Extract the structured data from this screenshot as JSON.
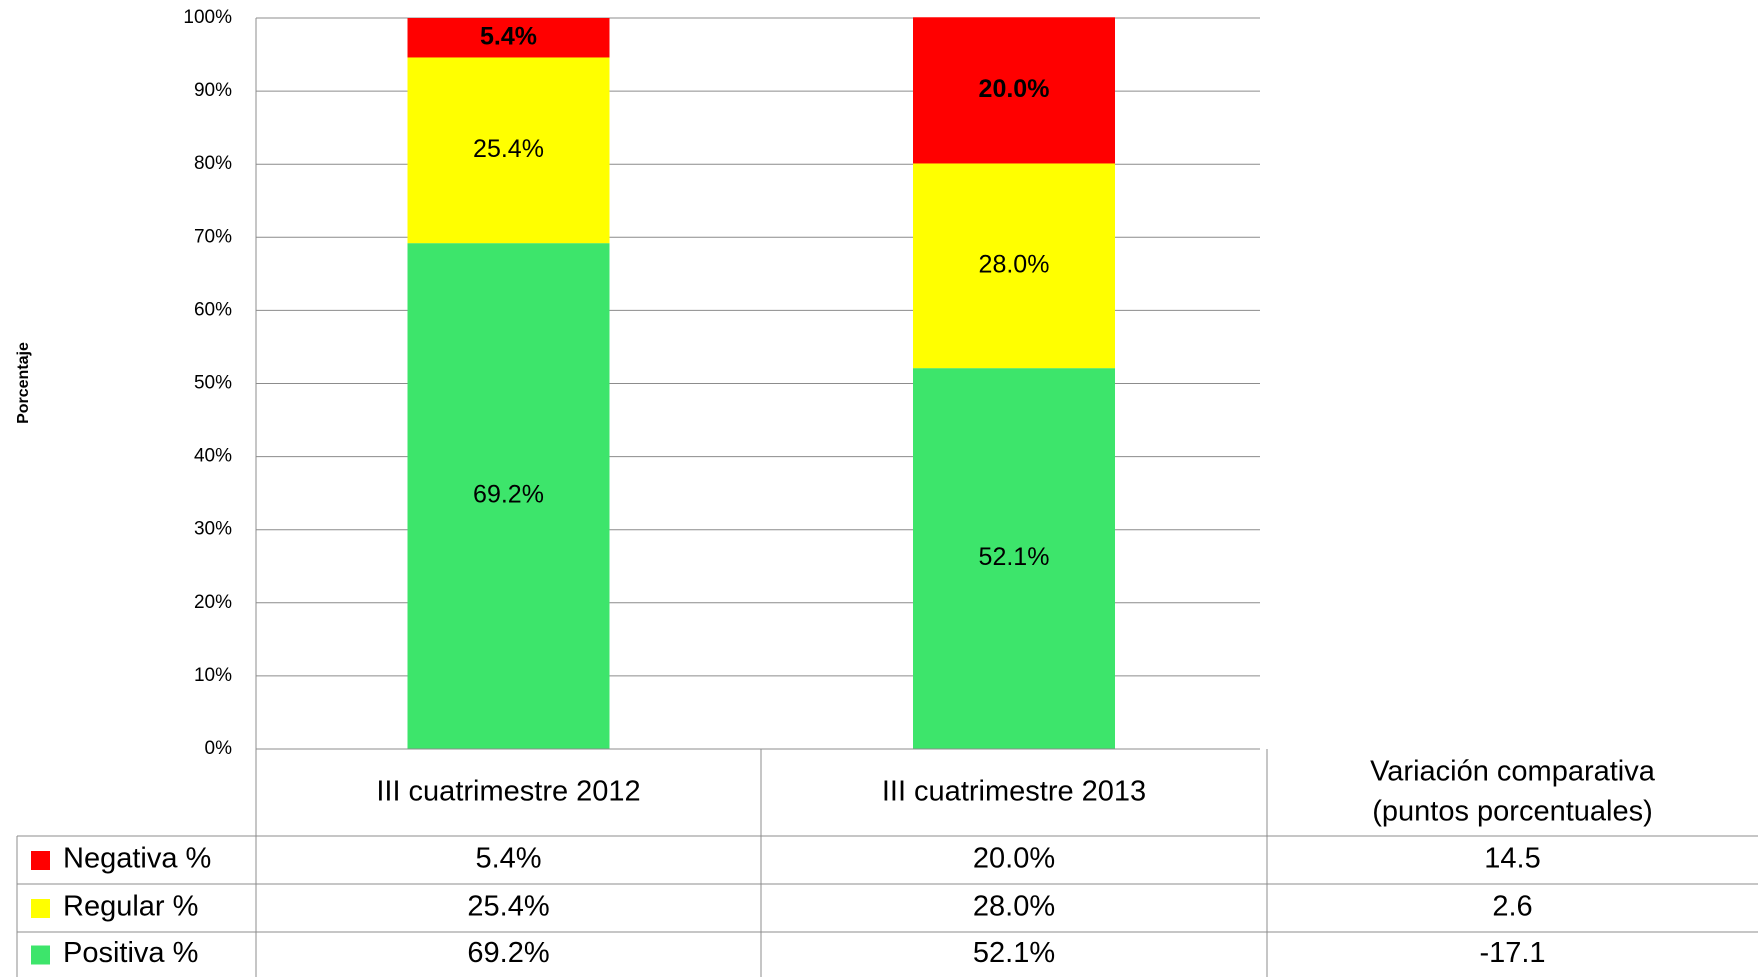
{
  "chart_data": {
    "type": "bar",
    "stacked": true,
    "y_label": "Porcentaje",
    "categories": [
      "III cuatrimestre 2012",
      "III cuatrimestre 2013"
    ],
    "series": [
      {
        "name": "Negativa %",
        "color": "#ff0000",
        "label_color": "#ffffff",
        "values": [
          5.4,
          20.0
        ],
        "value_labels": [
          "5.4%",
          "20.0%"
        ]
      },
      {
        "name": "Regular %",
        "color": "#ffff00",
        "label_color": "#000000",
        "values": [
          25.4,
          28.0
        ],
        "value_labels": [
          "25.4%",
          "28.0%"
        ]
      },
      {
        "name": "Positiva %",
        "color": "#3de56b",
        "label_color": "#000000",
        "values": [
          69.2,
          52.1
        ],
        "value_labels": [
          "69.2%",
          "52.1%"
        ]
      }
    ],
    "variation_header": [
      "Variación comparativa",
      "(puntos porcentuales)"
    ],
    "variation": [
      14.5,
      2.6,
      -17.1
    ],
    "ylim": [
      0,
      100
    ],
    "yticks": [
      {
        "value": 0,
        "label": "0%"
      },
      {
        "value": 10,
        "label": "10%"
      },
      {
        "value": 20,
        "label": "20%"
      },
      {
        "value": 30,
        "label": "30%"
      },
      {
        "value": 40,
        "label": "40%"
      },
      {
        "value": 50,
        "label": "50%"
      },
      {
        "value": 60,
        "label": "60%"
      },
      {
        "value": 70,
        "label": "70%"
      },
      {
        "value": 80,
        "label": "80%"
      },
      {
        "value": 90,
        "label": "90%"
      },
      {
        "value": 100,
        "label": "100%"
      }
    ],
    "grid": true
  }
}
